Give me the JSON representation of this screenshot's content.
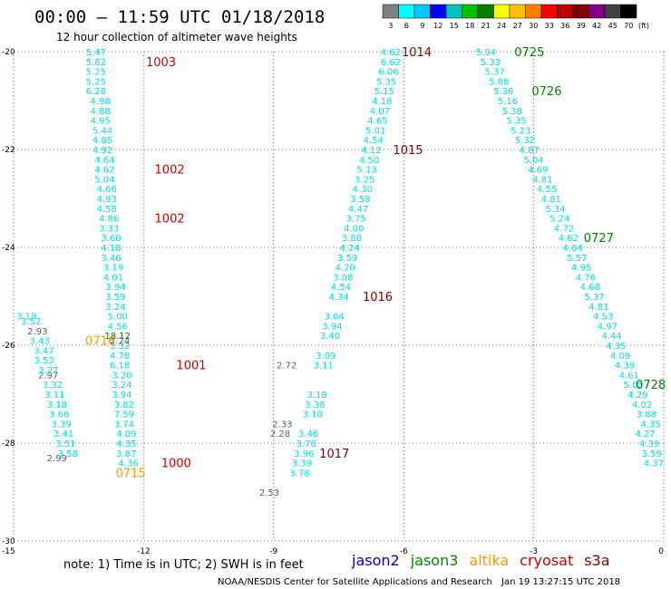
{
  "title": "00:00 – 11:59 UTC 01/18/2018",
  "subtitle": "12 hour collection of altimeter wave heights",
  "note": "note:  1) Time is in UTC; 2) SWH is in feet",
  "footer_left": "NOAA/NESDIS Center for Satellite Applications and Research",
  "footer_right": "Jan 19 13:27:15 UTC 2018",
  "scale": {
    "labels": [
      "3",
      "6",
      "9",
      "12",
      "15",
      "18",
      "21",
      "24",
      "27",
      "30",
      "33",
      "36",
      "39",
      "42",
      "45",
      "70"
    ],
    "unit": "(ft)",
    "colors": [
      "#808080",
      "#00ffff",
      "#00c8ff",
      "#0000ff",
      "#00c0c0",
      "#00c000",
      "#008000",
      "#ffff00",
      "#ffc000",
      "#ff8000",
      "#ff0000",
      "#c00000",
      "#800000",
      "#800080",
      "#404040",
      "#000000"
    ]
  },
  "satellites": [
    {
      "name": "jason2",
      "color": "#0000cc"
    },
    {
      "name": "jason3",
      "color": "#008800"
    },
    {
      "name": "altika",
      "color": "#ff9900"
    },
    {
      "name": "cryosat",
      "color": "#cc0000"
    },
    {
      "name": "s3a",
      "color": "#800000"
    }
  ],
  "chart_data": {
    "type": "scatter",
    "xlim": [
      -15,
      0
    ],
    "ylim": [
      -30,
      -20
    ],
    "xticks": [
      "-15",
      "-12",
      "-9",
      "-6",
      "-3",
      "0"
    ],
    "yticks": [
      "-20",
      "-22",
      "-24",
      "-26",
      "-28",
      "-30"
    ],
    "grid": true,
    "tracks": [
      {
        "color": "#00dddd",
        "points": [
          [
            -13.1,
            -20.0,
            "5.47"
          ],
          [
            -13.1,
            -20.2,
            "5.62"
          ],
          [
            -13.1,
            -20.4,
            "5.25"
          ],
          [
            -13.1,
            -20.6,
            "5.25"
          ],
          [
            -13.1,
            -20.8,
            "6.28"
          ],
          [
            -13.0,
            -21.0,
            "4.98"
          ],
          [
            -13.0,
            -21.2,
            "4.88"
          ],
          [
            -13.0,
            -21.4,
            "4.95"
          ],
          [
            -12.95,
            -21.6,
            "5.44"
          ],
          [
            -12.95,
            -21.8,
            "4.85"
          ],
          [
            -12.95,
            -22.0,
            "4.92"
          ],
          [
            -12.9,
            -22.2,
            "4.64"
          ],
          [
            -12.9,
            -22.4,
            "4.62"
          ],
          [
            -12.9,
            -22.6,
            "5.04"
          ],
          [
            -12.85,
            -22.8,
            "4.66"
          ],
          [
            -12.85,
            -23.0,
            "4.93"
          ],
          [
            -12.85,
            -23.2,
            "4.58"
          ],
          [
            -12.8,
            -23.4,
            "4.86"
          ],
          [
            -12.8,
            -23.6,
            "3.33"
          ],
          [
            -12.75,
            -23.8,
            "3.60"
          ],
          [
            -12.75,
            -24.0,
            "4.18"
          ],
          [
            -12.75,
            -24.2,
            "3.46"
          ],
          [
            -12.7,
            -24.4,
            "3.19"
          ],
          [
            -12.7,
            -24.6,
            "4.01"
          ],
          [
            -12.65,
            -24.8,
            "3.94"
          ],
          [
            -12.65,
            -25.0,
            "3.59"
          ],
          [
            -12.65,
            -25.2,
            "3.24"
          ],
          [
            -12.6,
            -25.4,
            "5.00"
          ],
          [
            -12.6,
            -25.6,
            "4.56"
          ],
          [
            -12.55,
            -26.0,
            "3.32"
          ],
          [
            -12.55,
            -26.2,
            "4.78"
          ],
          [
            -12.55,
            -26.4,
            "6.18"
          ],
          [
            -12.5,
            -26.6,
            "3.20"
          ],
          [
            -12.5,
            -26.8,
            "3.24"
          ],
          [
            -12.5,
            -27.0,
            "3.94"
          ],
          [
            -12.45,
            -27.2,
            "3.82"
          ],
          [
            -12.45,
            -27.4,
            "7.59"
          ],
          [
            -12.45,
            -27.6,
            "3.74"
          ],
          [
            -12.4,
            -27.8,
            "4.09"
          ],
          [
            -12.4,
            -28.0,
            "4.35"
          ],
          [
            -12.4,
            -28.2,
            "3.87"
          ],
          [
            -12.35,
            -28.4,
            "4.36"
          ]
        ]
      },
      {
        "color": "#008000",
        "points": [
          [
            -12.6,
            -25.8,
            "18.12"
          ]
        ]
      },
      {
        "color": "#606060",
        "points": [
          [
            -12.55,
            -25.9,
            "2.24"
          ],
          [
            -14.45,
            -25.7,
            "2.93"
          ],
          [
            -14.2,
            -26.6,
            "2.97"
          ],
          [
            -14.0,
            -28.3,
            "2.99"
          ],
          [
            -9.1,
            -29.0,
            "2.53"
          ],
          [
            -8.7,
            -26.4,
            "2.72"
          ],
          [
            -8.8,
            -27.6,
            "2.33"
          ],
          [
            -8.85,
            -27.8,
            "2.28"
          ]
        ]
      },
      {
        "color": "#00dddd",
        "points": [
          [
            -14.7,
            -25.4,
            "3.18"
          ],
          [
            -14.6,
            -25.5,
            "3.52"
          ],
          [
            -14.4,
            -25.9,
            "3.43"
          ],
          [
            -14.3,
            -26.1,
            "3.47"
          ],
          [
            -14.3,
            -26.3,
            "3.53"
          ],
          [
            -14.2,
            -26.5,
            "3.27"
          ],
          [
            -14.1,
            -26.8,
            "3.32"
          ],
          [
            -14.05,
            -27.0,
            "3.11"
          ],
          [
            -14.0,
            -27.2,
            "3.18"
          ],
          [
            -13.95,
            -27.4,
            "3.66"
          ],
          [
            -13.9,
            -27.6,
            "3.39"
          ],
          [
            -13.85,
            -27.8,
            "3.41"
          ],
          [
            -13.8,
            -28.0,
            "3.51"
          ],
          [
            -13.75,
            -28.2,
            "3.58"
          ]
        ]
      },
      {
        "color": "#00dddd",
        "points": [
          [
            -6.3,
            -20.0,
            "4.62"
          ],
          [
            -6.3,
            -20.2,
            "6.62"
          ],
          [
            -6.35,
            -20.4,
            "6.06"
          ],
          [
            -6.4,
            -20.6,
            "5.35"
          ],
          [
            -6.45,
            -20.8,
            "5.15"
          ],
          [
            -6.5,
            -21.0,
            "4.18"
          ],
          [
            -6.55,
            -21.2,
            "4.07"
          ],
          [
            -6.6,
            -21.4,
            "4.65"
          ],
          [
            -6.65,
            -21.6,
            "5.01"
          ],
          [
            -6.7,
            -21.8,
            "4.54"
          ],
          [
            -6.75,
            -22.0,
            "4.12"
          ],
          [
            -6.8,
            -22.2,
            "4.50"
          ],
          [
            -6.85,
            -22.4,
            "5.13"
          ],
          [
            -6.9,
            -22.6,
            "3.25"
          ],
          [
            -6.95,
            -22.8,
            "4.30"
          ],
          [
            -7.0,
            -23.0,
            "3.59"
          ],
          [
            -7.05,
            -23.2,
            "4.47"
          ],
          [
            -7.1,
            -23.4,
            "3.75"
          ],
          [
            -7.15,
            -23.6,
            "4.00"
          ],
          [
            -7.2,
            -23.8,
            "3.88"
          ],
          [
            -7.25,
            -24.0,
            "4.24"
          ],
          [
            -7.3,
            -24.2,
            "3.59"
          ],
          [
            -7.35,
            -24.4,
            "4.20"
          ],
          [
            -7.4,
            -24.6,
            "3.08"
          ],
          [
            -7.45,
            -24.8,
            "4.54"
          ],
          [
            -7.5,
            -25.0,
            "4.34"
          ],
          [
            -7.6,
            -25.4,
            "3.04"
          ],
          [
            -7.65,
            -25.6,
            "3.94"
          ],
          [
            -7.7,
            -25.8,
            "3.40"
          ],
          [
            -7.8,
            -26.2,
            "3.09"
          ],
          [
            -7.85,
            -26.4,
            "3.11"
          ],
          [
            -8.0,
            -27.0,
            "3.18"
          ],
          [
            -8.05,
            -27.2,
            "3.36"
          ],
          [
            -8.1,
            -27.4,
            "3.10"
          ],
          [
            -8.2,
            -27.8,
            "3.46"
          ],
          [
            -8.25,
            -28.0,
            "3.76"
          ],
          [
            -8.3,
            -28.2,
            "3.96"
          ],
          [
            -8.35,
            -28.4,
            "3.39"
          ],
          [
            -8.4,
            -28.6,
            "3.78"
          ]
        ]
      },
      {
        "color": "#00dddd",
        "points": [
          [
            -4.1,
            -20.0,
            "5.94"
          ],
          [
            -4.0,
            -20.2,
            "5.33"
          ],
          [
            -3.9,
            -20.4,
            "5.37"
          ],
          [
            -3.8,
            -20.6,
            "5.88"
          ],
          [
            -3.7,
            -20.8,
            "5.36"
          ],
          [
            -3.6,
            -21.0,
            "5.16"
          ],
          [
            -3.5,
            -21.2,
            "5.38"
          ],
          [
            -3.4,
            -21.4,
            "5.35"
          ],
          [
            -3.3,
            -21.6,
            "5.23"
          ],
          [
            -3.2,
            -21.8,
            "5.32"
          ],
          [
            -3.1,
            -22.0,
            "4.87"
          ],
          [
            -3.0,
            -22.2,
            "5.04"
          ],
          [
            -2.9,
            -22.4,
            "4.69"
          ],
          [
            -2.8,
            -22.6,
            "4.81"
          ],
          [
            -2.7,
            -22.8,
            "4.55"
          ],
          [
            -2.6,
            -23.0,
            "4.81"
          ],
          [
            -2.5,
            -23.2,
            "5.34"
          ],
          [
            -2.4,
            -23.4,
            "5.24"
          ],
          [
            -2.3,
            -23.6,
            "4.72"
          ],
          [
            -2.2,
            -23.8,
            "4.62"
          ],
          [
            -2.1,
            -24.0,
            "4.64"
          ],
          [
            -2.0,
            -24.2,
            "5.57"
          ],
          [
            -1.9,
            -24.4,
            "4.95"
          ],
          [
            -1.8,
            -24.6,
            "4.76"
          ],
          [
            -1.7,
            -24.8,
            "4.68"
          ],
          [
            -1.6,
            -25.0,
            "5.37"
          ],
          [
            -1.5,
            -25.2,
            "4.81"
          ],
          [
            -1.4,
            -25.4,
            "4.53"
          ],
          [
            -1.3,
            -25.6,
            "4.97"
          ],
          [
            -1.2,
            -25.8,
            "4.44"
          ],
          [
            -1.1,
            -26.0,
            "4.35"
          ],
          [
            -1.0,
            -26.2,
            "4.09"
          ],
          [
            -0.9,
            -26.4,
            "4.39"
          ],
          [
            -0.8,
            -26.6,
            "4.61"
          ],
          [
            -0.7,
            -26.8,
            "5.05"
          ],
          [
            -0.6,
            -27.0,
            "4.29"
          ],
          [
            -0.5,
            -27.2,
            "4.02"
          ],
          [
            -0.4,
            -27.4,
            "3.88"
          ],
          [
            -0.3,
            -27.6,
            "4.35"
          ],
          [
            -0.2,
            -27.8,
            "4.27"
          ],
          [
            -0.1,
            -28.0,
            "4.39"
          ],
          [
            -0.05,
            -28.2,
            "3.59"
          ],
          [
            0.0,
            -28.4,
            "4.37"
          ]
        ]
      }
    ],
    "labels": [
      {
        "x": -11.6,
        "y": -20.2,
        "text": "1003",
        "color": "#cc0000"
      },
      {
        "x": -11.4,
        "y": -22.4,
        "text": "1002",
        "color": "#cc0000"
      },
      {
        "x": -11.4,
        "y": -23.4,
        "text": "1002",
        "color": "#cc0000"
      },
      {
        "x": -10.9,
        "y": -26.4,
        "text": "1001",
        "color": "#cc0000"
      },
      {
        "x": -11.25,
        "y": -28.4,
        "text": "1000",
        "color": "#cc0000"
      },
      {
        "x": -5.7,
        "y": -20.0,
        "text": "1014",
        "color": "#800000"
      },
      {
        "x": -5.9,
        "y": -22.0,
        "text": "1015",
        "color": "#800000"
      },
      {
        "x": -6.6,
        "y": -25.0,
        "text": "1016",
        "color": "#800000"
      },
      {
        "x": -7.6,
        "y": -28.2,
        "text": "1017",
        "color": "#800000"
      },
      {
        "x": -13.0,
        "y": -25.9,
        "text": "0716",
        "color": "#ff9900"
      },
      {
        "x": -12.3,
        "y": -28.6,
        "text": "0715",
        "color": "#ff9900"
      },
      {
        "x": -3.1,
        "y": -20.0,
        "text": "0725",
        "color": "#008000"
      },
      {
        "x": -2.7,
        "y": -20.8,
        "text": "0726",
        "color": "#008000"
      },
      {
        "x": -1.5,
        "y": -23.8,
        "text": "0727",
        "color": "#008000"
      },
      {
        "x": -0.3,
        "y": -26.8,
        "text": "0728",
        "color": "#008000"
      }
    ]
  }
}
